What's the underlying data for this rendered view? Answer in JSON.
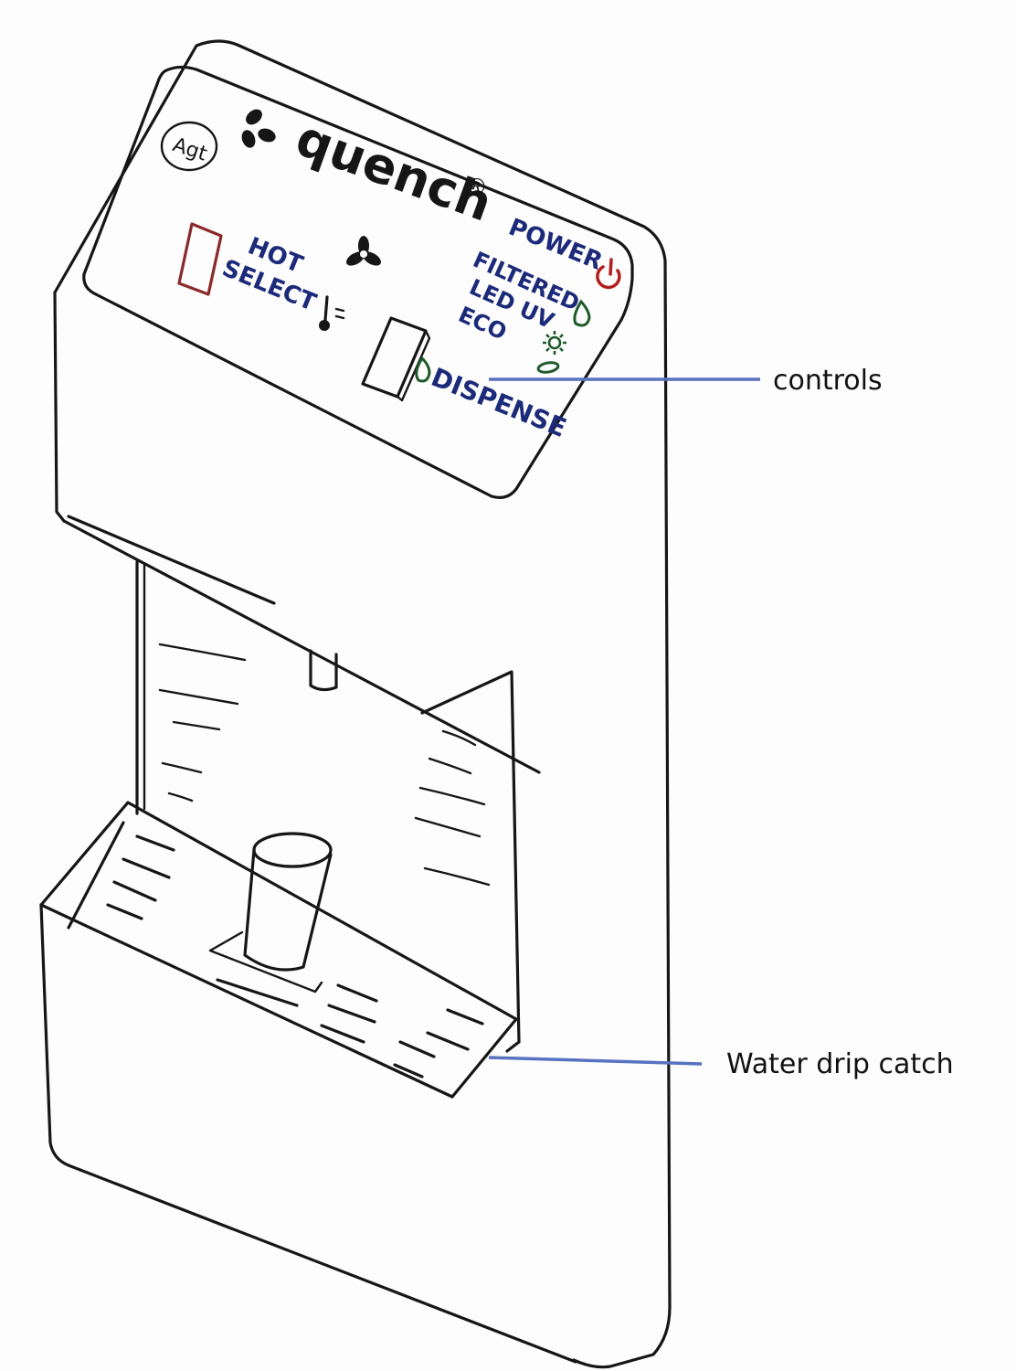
{
  "brand": {
    "badge": "Agt",
    "name": "quench",
    "mark": "®"
  },
  "controls": {
    "hot_select_line1": "HOT",
    "hot_select_line2": "SELECT",
    "power": "POWER",
    "filtered": "FILTERED",
    "led_uv": "LED UV",
    "eco": "ECO",
    "dispense": "DISPENSE"
  },
  "callouts": {
    "controls": "controls",
    "drip": "Water drip catch"
  },
  "colors": {
    "ink": "#161616",
    "label_blue": "#1c2a7a",
    "hot_red": "#8a2a2a",
    "power_red": "#b01e1e",
    "indicator_green": "#1f5a2a",
    "callout_line": "#5872c0"
  },
  "icons": {
    "logo": "three-leaf-logo-icon",
    "fan": "fan-icon",
    "thermometer": "thermometer-icon",
    "power": "power-icon",
    "drop": "water-drop-icon",
    "sun": "sun-icon",
    "leaf": "leaf-icon"
  }
}
